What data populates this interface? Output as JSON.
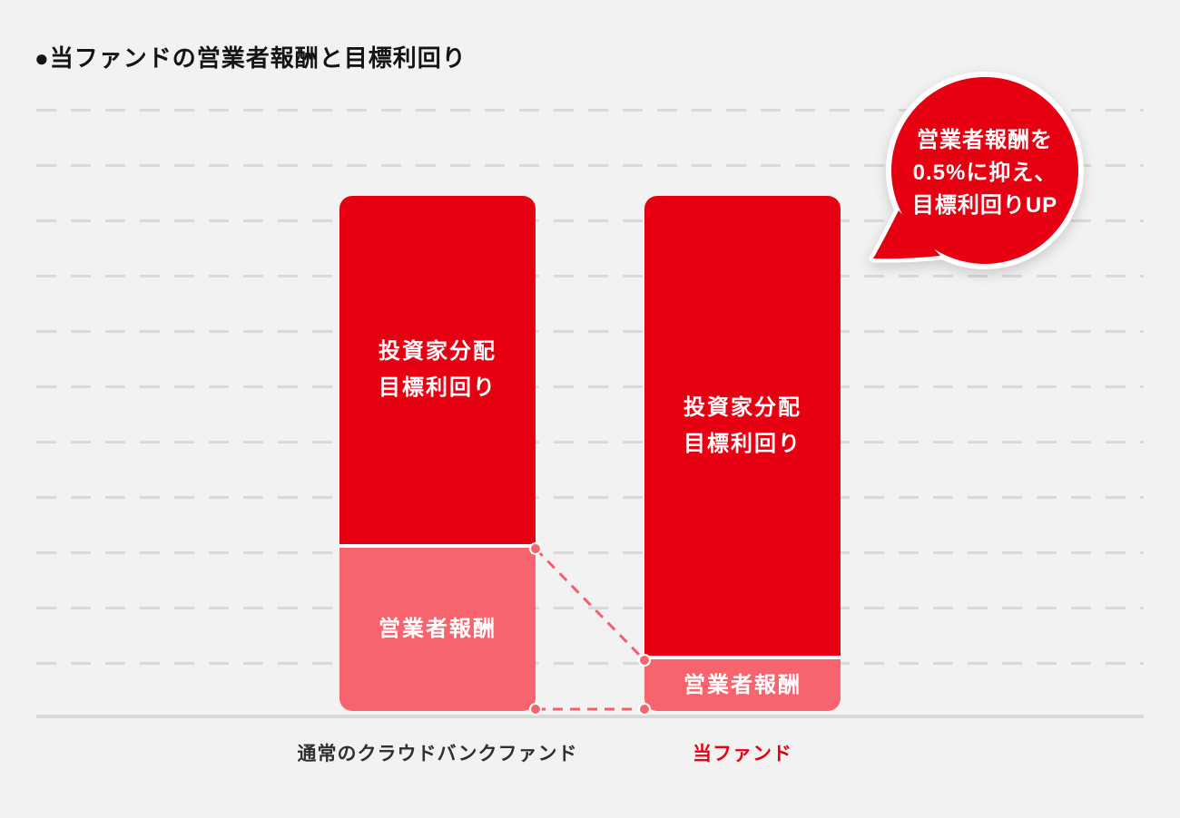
{
  "title": "●当ファンドの営業者報酬と目標利回り",
  "chart_data": {
    "type": "bar",
    "stacked": true,
    "orientation": "vertical",
    "categories": [
      "通常のクラウドバンクファンド",
      "当ファンド"
    ],
    "series": [
      {
        "name": "営業者報酬",
        "color": "#f7646e",
        "values": [
          3.0,
          1.0
        ]
      },
      {
        "name": "投資家分配目標利回り",
        "color": "#e60012",
        "values": [
          6.4,
          8.4
        ]
      }
    ],
    "value_axis": {
      "numeric_labels_visible": false,
      "unit": "relative (gridline units, schematic)",
      "min": 0,
      "max": 11,
      "gridlines": 11,
      "grid_style": "horizontal dashed"
    },
    "segment_labels": {
      "investor_yield_lines": [
        "投資家分配",
        "目標利回り"
      ],
      "operator_fee": "営業者報酬"
    },
    "annotation_bubble": "営業者報酬を0.5%に抑え、目標利回りUP",
    "connectors": "dashed pink lines with dots linking fee-segment tops and bar bottoms between the two bars",
    "legend_position": "none"
  },
  "bars": {
    "left": {
      "category": "通常のクラウドバンクファンド",
      "yield_label_lines": [
        "投資家分配",
        "目標利回り"
      ],
      "fee_label": "営業者報酬"
    },
    "right": {
      "category": "当ファンド",
      "yield_label_lines": [
        "投資家分配",
        "目標利回り"
      ],
      "fee_label": "営業者報酬"
    }
  },
  "bubble": {
    "lines": [
      "営業者報酬を",
      "0.5%に抑え、",
      "目標利回りUP"
    ]
  },
  "colors": {
    "red": "#e60012",
    "pink": "#f7646e",
    "background": "#f2f2f2",
    "gridline": "#d9d9d9",
    "connector": "#f2606c",
    "label_dark": "#303030",
    "title": "#141414"
  }
}
